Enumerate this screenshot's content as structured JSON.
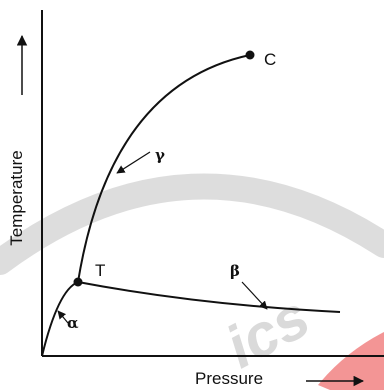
{
  "axes": {
    "x_label": "Pressure",
    "y_label": "Temperature"
  },
  "points": {
    "triple": "T",
    "critical": "C"
  },
  "curves": {
    "alpha": "α",
    "beta": "β",
    "gamma": "γ"
  },
  "watermark": {
    "text": "ics",
    "color": "#cfcfcf",
    "accent": "#f06a6a"
  }
}
